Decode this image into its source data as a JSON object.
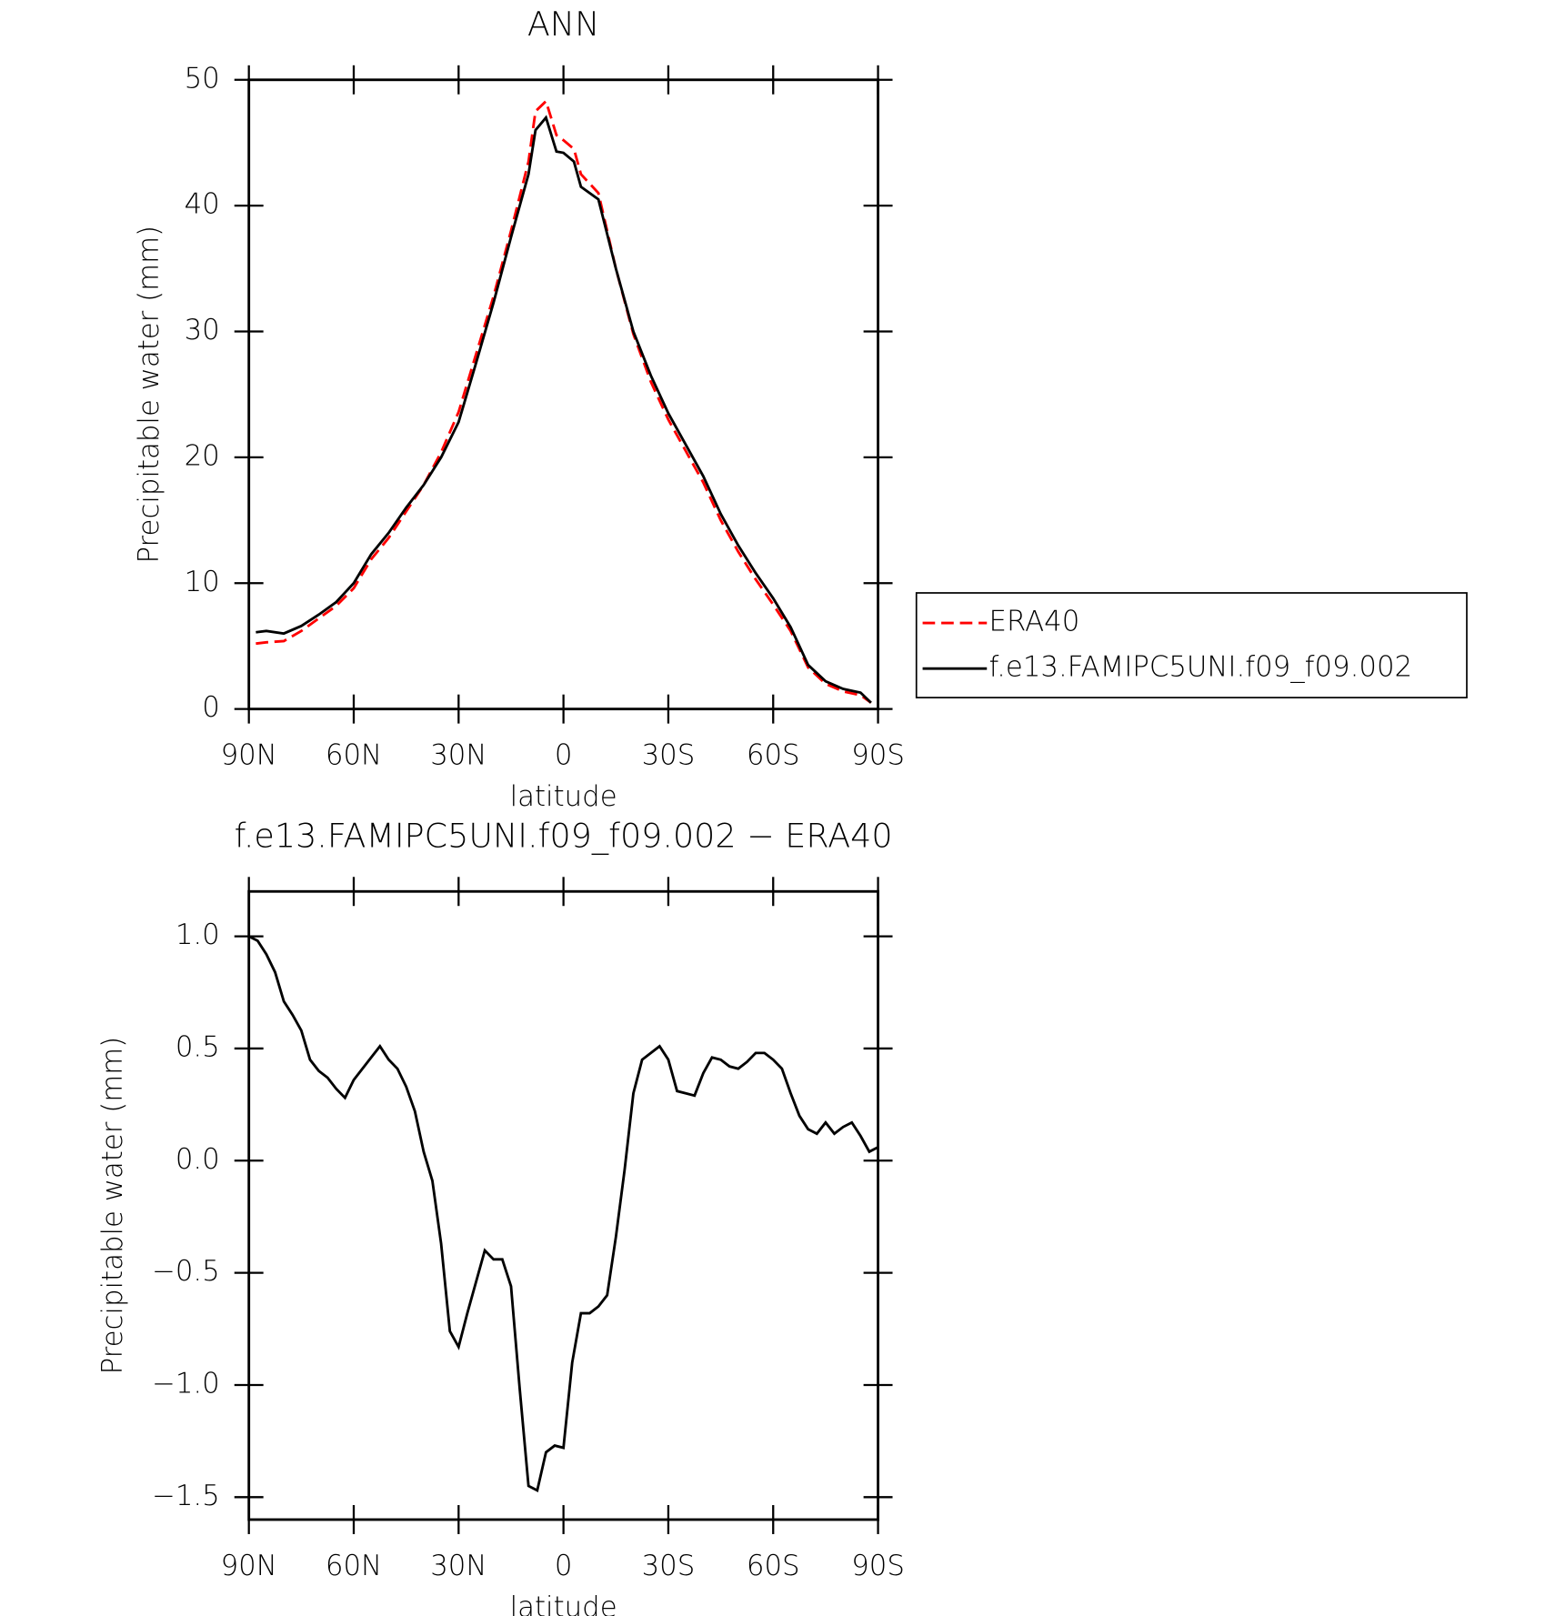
{
  "chart_data": [
    {
      "type": "line",
      "title": "ANN",
      "xlabel": "latitude",
      "ylabel": "Precipitable water (mm)",
      "x": [
        88,
        85,
        80,
        75,
        70,
        65,
        60,
        55,
        50,
        45,
        40,
        35,
        30,
        25,
        20,
        15,
        10,
        8,
        5,
        2,
        0,
        -3,
        -5,
        -10,
        -15,
        -20,
        -25,
        -30,
        -35,
        -40,
        -45,
        -50,
        -55,
        -60,
        -65,
        -70,
        -75,
        -80,
        -85,
        -88
      ],
      "series": [
        {
          "name": "ERA40",
          "color": "#ff0000",
          "dash": true,
          "values": [
            5.2,
            5.3,
            5.4,
            6.2,
            7.2,
            8.2,
            9.6,
            11.9,
            13.6,
            15.7,
            17.8,
            20.4,
            23.6,
            28.2,
            32.8,
            38,
            43.5,
            47.5,
            48.3,
            45.6,
            45.2,
            44.5,
            42.5,
            41,
            35,
            29.8,
            26,
            23,
            20.5,
            18,
            15,
            12.5,
            10.3,
            8.3,
            6.2,
            3.3,
            2.0,
            1.4,
            1.1,
            0.5
          ]
        },
        {
          "name": "f.e13.FAMIPC5UNI.f09_f09.002",
          "color": "#000000",
          "dash": false,
          "values": [
            6.1,
            6.2,
            6.0,
            6.6,
            7.5,
            8.5,
            10.0,
            12.3,
            14.0,
            16.0,
            17.8,
            20.0,
            22.8,
            27.5,
            32.3,
            37.5,
            42.5,
            46,
            47,
            44.3,
            44.2,
            43.5,
            41.5,
            40.5,
            35,
            30,
            26.5,
            23.5,
            21,
            18.5,
            15.5,
            13,
            10.8,
            8.8,
            6.5,
            3.5,
            2.2,
            1.6,
            1.3,
            0.5
          ]
        }
      ],
      "xlim": [
        90,
        -90
      ],
      "xticks": [
        {
          "value": 90,
          "label": "90N"
        },
        {
          "value": 60,
          "label": "60N"
        },
        {
          "value": 30,
          "label": "30N"
        },
        0,
        {
          "value": -30,
          "label": "30S"
        },
        {
          "value": -60,
          "label": "60S"
        },
        {
          "value": -90,
          "label": "90S"
        }
      ],
      "ylim": [
        0,
        50
      ],
      "yticks": [
        0,
        10,
        20,
        30,
        40,
        50
      ],
      "legend": "right"
    },
    {
      "type": "line",
      "title": "f.e13.FAMIPC5UNI.f09_f09.002 − ERA40",
      "xlabel": "latitude",
      "ylabel": "Precipitable water (mm)",
      "x": [
        90,
        87.5,
        85,
        82.5,
        80,
        77.5,
        75,
        72.5,
        70,
        67.5,
        65,
        62.5,
        60,
        57.5,
        55,
        52.5,
        50,
        47.5,
        45,
        42.5,
        40,
        37.5,
        35,
        32.5,
        30,
        27.5,
        25,
        22.5,
        20,
        17.5,
        15,
        12.5,
        10,
        7.5,
        5,
        2.5,
        0,
        -2.5,
        -5,
        -7.5,
        -10,
        -12.5,
        -15,
        -17.5,
        -20,
        -22.5,
        -25,
        -27.5,
        -30,
        -32.5,
        -35,
        -37.5,
        -40,
        -42.5,
        -45,
        -47.5,
        -50,
        -52.5,
        -55,
        -57.5,
        -60,
        -62.5,
        -65,
        -67.5,
        -70,
        -72.5,
        -75,
        -77.5,
        -80,
        -82.5,
        -85,
        -87.5,
        -90
      ],
      "values": [
        1.0,
        0.98,
        0.92,
        0.84,
        0.71,
        0.65,
        0.58,
        0.45,
        0.4,
        0.37,
        0.32,
        0.28,
        0.36,
        0.41,
        0.46,
        0.51,
        0.45,
        0.41,
        0.33,
        0.22,
        0.04,
        -0.09,
        -0.37,
        -0.76,
        -0.83,
        -0.68,
        -0.54,
        -0.4,
        -0.44,
        -0.44,
        -0.56,
        -1.02,
        -1.45,
        -1.47,
        -1.3,
        -1.27,
        -1.28,
        -0.9,
        -0.68,
        -0.68,
        -0.65,
        -0.6,
        -0.34,
        -0.04,
        0.3,
        0.45,
        0.48,
        0.51,
        0.45,
        0.31,
        0.3,
        0.29,
        0.39,
        0.46,
        0.45,
        0.42,
        0.41,
        0.44,
        0.48,
        0.48,
        0.45,
        0.41,
        0.3,
        0.2,
        0.14,
        0.12,
        0.17,
        0.12,
        0.15,
        0.17,
        0.11,
        0.04,
        0.06
      ],
      "color": "#000000",
      "xlim": [
        90,
        -90
      ],
      "xticks": [
        {
          "value": 90,
          "label": "90N"
        },
        {
          "value": 60,
          "label": "60N"
        },
        {
          "value": 30,
          "label": "30N"
        },
        0,
        {
          "value": -30,
          "label": "30S"
        },
        {
          "value": -60,
          "label": "60S"
        },
        {
          "value": -90,
          "label": "90S"
        }
      ],
      "ylim": [
        -1.6,
        1.2
      ],
      "yticks": [
        {
          "value": -1.5,
          "label": "−1.5"
        },
        {
          "value": -1.0,
          "label": "−1.0"
        },
        {
          "value": -0.5,
          "label": "−0.5"
        },
        {
          "value": 0,
          "label": "0.0"
        },
        0.5,
        {
          "value": 1.0,
          "label": "1.0"
        }
      ]
    }
  ]
}
